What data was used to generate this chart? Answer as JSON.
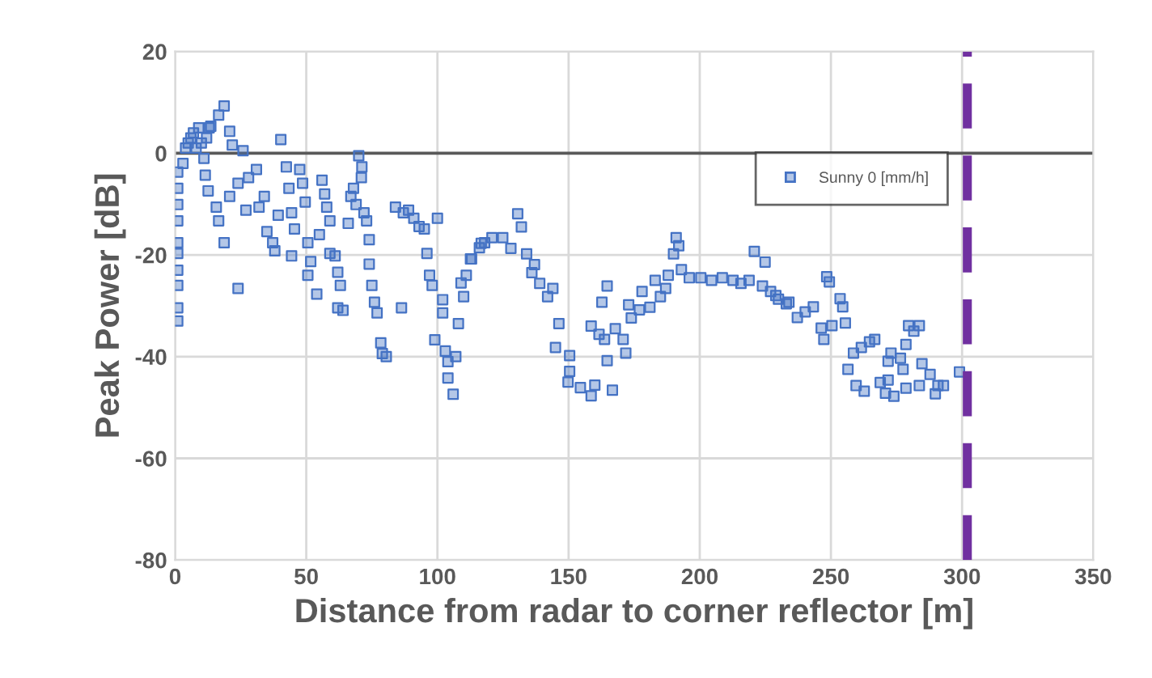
{
  "chart_data": {
    "type": "scatter",
    "xlabel": "Distance from radar to corner reflector [m]",
    "ylabel": "Peak Power [dB]",
    "xlim": [
      0,
      350
    ],
    "xticks": [
      0,
      50,
      100,
      150,
      200,
      250,
      300,
      350
    ],
    "ylim": [
      -80,
      20
    ],
    "yticks": [
      -80,
      -60,
      -40,
      -20,
      0,
      20
    ],
    "grid": true,
    "legend": "right",
    "marker": "square",
    "ref_lines": [
      {
        "axis": "y",
        "value": 0,
        "color": "#595959",
        "line_style": "solid"
      },
      {
        "axis": "x",
        "value": 302,
        "color": "#7030a0",
        "line_style": "dashed"
      }
    ],
    "series": [
      {
        "name": "Sunny 0 [mm/h]",
        "color": "#4472c4",
        "x": [
          1,
          1,
          1,
          1,
          1,
          1,
          1,
          1,
          1,
          1,
          3,
          4,
          5,
          6,
          7,
          8,
          9,
          10,
          11,
          12,
          13,
          18.7,
          16.6,
          13.6,
          20.8,
          21.8,
          25.9,
          11.5,
          12.6,
          15.7,
          16.6,
          18.7,
          24,
          20.8,
          24,
          28,
          31,
          27,
          32,
          34,
          35,
          37.2,
          38,
          40.3,
          39.3,
          42.4,
          43.4,
          44.4,
          45.5,
          44.4,
          47.5,
          48.6,
          49.6,
          50.6,
          51.7,
          50.6,
          54,
          55,
          56,
          57,
          57.8,
          59,
          59,
          61,
          62,
          63,
          62,
          64,
          66,
          67,
          68,
          69,
          70,
          71.2,
          71,
          72,
          73,
          74,
          74,
          75,
          76,
          77,
          78.4,
          79,
          80.5,
          86.3,
          84,
          87,
          89,
          91,
          93,
          95,
          96,
          97,
          98,
          99,
          100,
          102,
          102,
          103,
          104,
          104,
          106,
          107,
          108,
          109,
          110,
          111,
          113,
          116,
          118,
          112.6,
          116.7,
          120.8,
          124.9,
          128,
          130.6,
          132,
          134,
          137,
          136,
          139,
          142,
          144,
          146.3,
          145,
          150.4,
          150.4,
          149.8,
          154.5,
          158.6,
          160,
          158.6,
          161.6,
          163.7,
          162.7,
          164.7,
          164.7,
          166.7,
          167.8,
          170.8,
          171.8,
          172.9,
          173.9,
          177,
          178,
          181,
          183,
          185,
          187,
          188,
          190,
          191,
          192,
          193,
          196,
          200.4,
          204.5,
          208.6,
          212.7,
          215.7,
          218.8,
          220.8,
          224.9,
          223.9,
          227,
          230,
          234,
          229,
          233,
          237.2,
          240.2,
          243.3,
          246.3,
          247.3,
          248.4,
          249.4,
          250.4,
          253.5,
          254.5,
          255.5,
          256.5,
          258.6,
          259.6,
          261.6,
          262.7,
          264.7,
          266.7,
          268.8,
          270.8,
          271.8,
          272.9,
          271.8,
          274,
          276.5,
          277.5,
          278.6,
          279.6,
          281.6,
          283.7,
          278.6,
          283.7,
          284.7,
          287.8,
          289.8,
          290.8,
          292.9,
          299
        ],
        "values": [
          -33,
          -30.4,
          -26,
          -23,
          -19.7,
          -17.6,
          -13.3,
          -10.1,
          -6.9,
          -3.7,
          -2,
          1,
          2,
          3,
          4,
          1,
          5,
          2,
          -1,
          3,
          5,
          9.3,
          7.5,
          5.3,
          4.3,
          1.6,
          0.5,
          -4.3,
          -7.4,
          -10.6,
          -13.3,
          -17.6,
          -26.6,
          -8.5,
          -5.9,
          -4.8,
          -3.2,
          -11.2,
          -10.6,
          -8.5,
          -15.4,
          -17.6,
          -19.2,
          2.7,
          -12.2,
          -2.7,
          -6.9,
          -11.7,
          -14.9,
          -20.2,
          -3.2,
          -5.9,
          -9.6,
          -17.6,
          -21.3,
          -24,
          -27.7,
          -16,
          -5.3,
          -8,
          -10.6,
          -13.3,
          -19.7,
          -20.2,
          -23.4,
          -26,
          -30.4,
          -30.9,
          -13.8,
          -8.5,
          -6.9,
          -10.1,
          -0.5,
          -2.7,
          -4.8,
          -11.7,
          -13.3,
          -17,
          -21.8,
          -26,
          -29.3,
          -31.4,
          -37.3,
          -39.4,
          -40,
          -30.4,
          -10.6,
          -11.7,
          -11.2,
          -12.8,
          -14.4,
          -14.9,
          -19.7,
          -24,
          -26,
          -36.7,
          -12.8,
          -28.8,
          -31.4,
          -38.9,
          -41,
          -44.2,
          -47.4,
          -40,
          -33.5,
          -25.5,
          -28.2,
          -24,
          -20.8,
          -18.6,
          -17.6,
          -20.8,
          -17.7,
          -16.6,
          -16.6,
          -18.7,
          -11.9,
          -14.5,
          -19.8,
          -21.9,
          -23.5,
          -25.6,
          -28.2,
          -26.6,
          -33.5,
          -38.2,
          -39.8,
          -42.9,
          -45,
          -46.1,
          -47.7,
          -45.6,
          -34,
          -35.6,
          -36.6,
          -29.3,
          -26.1,
          -40.8,
          -46.6,
          -34.5,
          -36.6,
          -39.3,
          -29.8,
          -32.4,
          -30.8,
          -27.2,
          -30.3,
          -25,
          -28.2,
          -26.6,
          -24,
          -19.8,
          -16.6,
          -18.2,
          -22.9,
          -24.5,
          -24.5,
          -25,
          -24.5,
          -25,
          -25.6,
          -25,
          -19.3,
          -21.4,
          -26.1,
          -27.2,
          -28.7,
          -29.3,
          -28,
          -29.6,
          -32.3,
          -31.2,
          -30.2,
          -34.4,
          -36.6,
          -24.3,
          -25.3,
          -33.9,
          -28.6,
          -30.2,
          -33.4,
          -42.5,
          -39.3,
          -45.7,
          -38.2,
          -46.8,
          -37.1,
          -36.6,
          -45.1,
          -47.2,
          -40.9,
          -39.3,
          -44.6,
          -47.8,
          -40.3,
          -42.5,
          -37.6,
          -33.9,
          -35,
          -33.9,
          -46.2,
          -45.7,
          -41.4,
          -43.5,
          -47.3,
          -45.7,
          -45.7,
          -43
        ]
      }
    ]
  }
}
